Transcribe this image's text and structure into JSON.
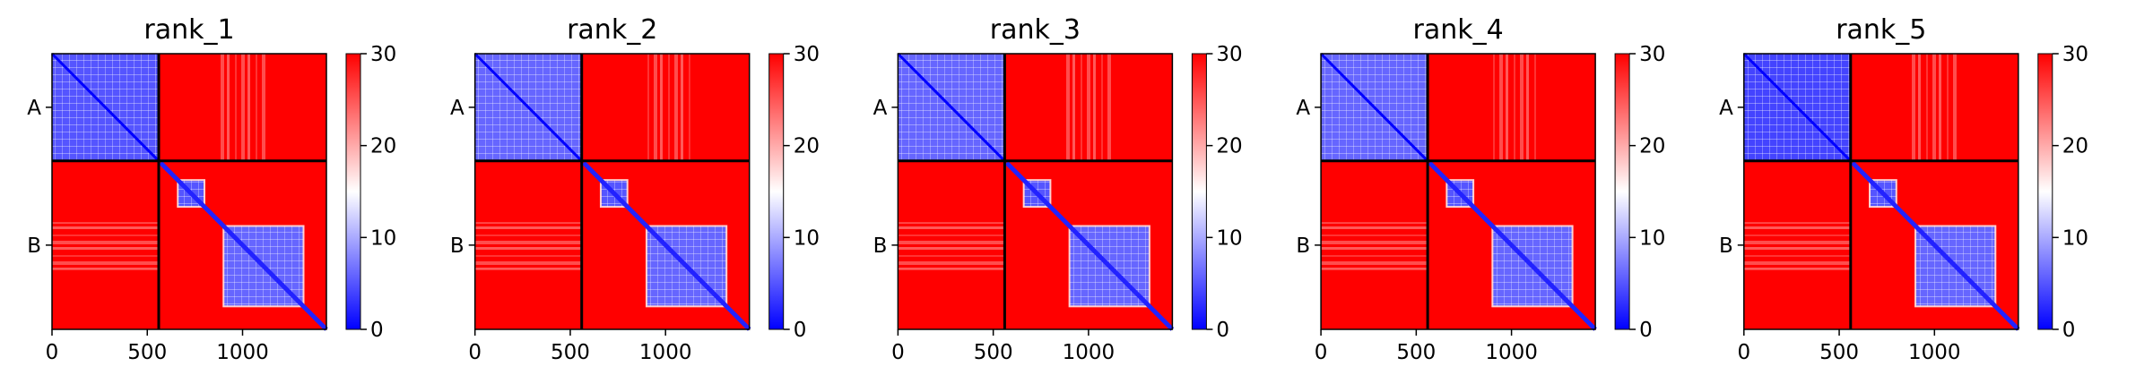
{
  "chart_data": {
    "type": "heatmap",
    "colormap": "bwr",
    "color_scale": {
      "min": 0,
      "max": 30,
      "ticks": [
        "0",
        "10",
        "20",
        "30"
      ]
    },
    "chain_boundary": 560,
    "axis_range": [
      0,
      1440
    ],
    "x_ticks": [
      "0",
      "500",
      "1000"
    ],
    "x_tick_values": [
      0,
      500,
      1000
    ],
    "y_ticks": [
      "A",
      "B"
    ],
    "y_tick_values": [
      280,
      1000
    ],
    "domains_chain_b": [
      {
        "start": 570,
        "end": 1440,
        "mean": 2
      },
      {
        "start": 660,
        "end": 800,
        "mean": 5
      },
      {
        "start": 900,
        "end": 1320,
        "mean": 6
      }
    ],
    "panels": [
      {
        "title": "rank_1",
        "chain_a_mean": 5
      },
      {
        "title": "rank_2",
        "chain_a_mean": 6
      },
      {
        "title": "rank_3",
        "chain_a_mean": 6
      },
      {
        "title": "rank_4",
        "chain_a_mean": 6
      },
      {
        "title": "rank_5",
        "chain_a_mean": 4
      }
    ]
  }
}
